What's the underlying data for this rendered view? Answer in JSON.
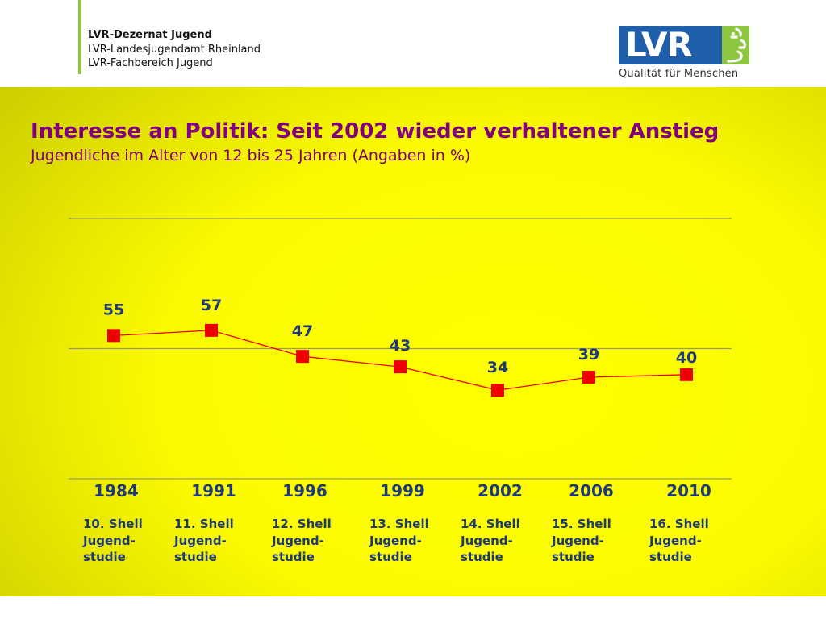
{
  "header": {
    "org_lines": [
      "LVR-Dezernat Jugend",
      "LVR-Landesjugendamt Rheinland",
      "LVR-Fachbereich Jugend"
    ],
    "logo_text": "LVR",
    "logo_claim": "Qualität für Menschen"
  },
  "colors": {
    "accent_green": "#8dc63f",
    "logo_blue": "#1f5ea8",
    "title_purple": "#800080",
    "navy_text": "#1f3a7a",
    "series_red": "#ee0000",
    "gridline": "#9a9a6a"
  },
  "chart_data": {
    "type": "line",
    "title": "Interesse an Politik: Seit 2002 wieder verhaltener Anstieg",
    "subtitle": "Jugendliche im Alter von 12 bis 25 Jahren (Angaben in %)",
    "categories": [
      "1984",
      "1991",
      "1996",
      "1999",
      "2002",
      "2006",
      "2010"
    ],
    "sublabels": [
      [
        "10. Shell",
        "Jugend-",
        "studie"
      ],
      [
        "11. Shell",
        "Jugend-",
        "studie"
      ],
      [
        "12. Shell",
        "Jugend-",
        "studie"
      ],
      [
        "13. Shell",
        "Jugend-",
        "studie"
      ],
      [
        "14. Shell",
        "Jugend-",
        "studie"
      ],
      [
        "15. Shell",
        "Jugend-",
        "studie"
      ],
      [
        "16. Shell",
        "Jugend-",
        "studie"
      ]
    ],
    "values": [
      55,
      57,
      47,
      43,
      34,
      39,
      40
    ],
    "ylim": [
      0,
      100
    ],
    "gridlines": [
      0,
      50,
      100
    ],
    "data_labels": true,
    "legend": false
  }
}
